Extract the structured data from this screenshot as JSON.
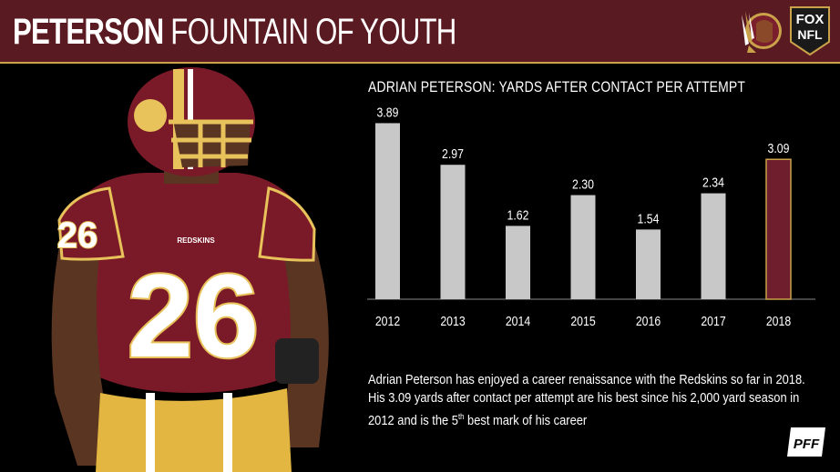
{
  "banner": {
    "title_bold": "PETERSON",
    "title_rest": "FOUNTAIN OF YOUTH",
    "team_logo_icon": "redskins-logo-icon",
    "network_logo": {
      "line1": "FOX",
      "line2": "NFL"
    }
  },
  "player_image": {
    "icon": "football-player-icon",
    "jersey_number": "26",
    "jersey_wordmark": "REDSKINS"
  },
  "chart_data": {
    "type": "bar",
    "title": "ADRIAN PETERSON: YARDS AFTER CONTACT PER ATTEMPT",
    "categories": [
      "2012",
      "2013",
      "2014",
      "2015",
      "2016",
      "2017",
      "2018"
    ],
    "values": [
      3.89,
      2.97,
      1.62,
      2.3,
      1.54,
      2.34,
      3.09
    ],
    "value_labels": [
      "3.89",
      "2.97",
      "1.62",
      "2.30",
      "1.54",
      "2.34",
      "3.09"
    ],
    "highlight_index": 6,
    "colors": {
      "default": "#c8c8c8",
      "highlight": "#6e1e2c",
      "highlight_border": "#c9a24a"
    },
    "xlabel": "",
    "ylabel": "",
    "ylim": [
      0,
      4.2
    ],
    "grid": false
  },
  "caption": {
    "line_pre": "Adrian Peterson has enjoyed a career renaissance with the Redskins so far in 2018. His 3.09 yards after contact per attempt are his best since his 2,000 yard season in 2012 and is the 5",
    "superscript": "th",
    "line_post": " best mark of his career"
  },
  "footer": {
    "logo_text": "PFF"
  }
}
